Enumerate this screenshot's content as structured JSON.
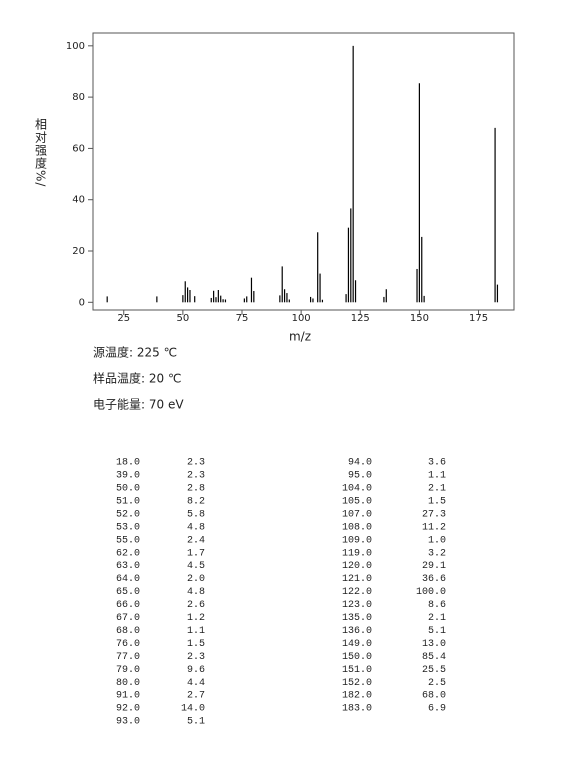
{
  "chart_data": {
    "type": "stem",
    "y_label": "相对强度%/",
    "x_label": "m/z",
    "x": [
      18,
      39,
      50,
      51,
      52,
      53,
      55,
      62,
      63,
      64,
      65,
      66,
      67,
      68,
      76,
      77,
      79,
      80,
      91,
      92,
      93,
      94,
      95,
      104,
      105,
      107,
      108,
      109,
      119,
      120,
      121,
      122,
      123,
      135,
      136,
      149,
      150,
      151,
      152,
      182,
      183
    ],
    "values": [
      2.3,
      2.3,
      2.8,
      8.2,
      5.8,
      4.8,
      2.4,
      1.7,
      4.5,
      2.0,
      4.8,
      2.6,
      1.2,
      1.1,
      1.5,
      2.3,
      9.6,
      4.4,
      2.7,
      14.0,
      5.1,
      3.6,
      1.1,
      2.1,
      1.5,
      27.3,
      11.2,
      1.0,
      3.2,
      29.1,
      36.6,
      100.0,
      8.6,
      2.1,
      5.1,
      13.0,
      85.4,
      25.5,
      2.5,
      68.0,
      6.9
    ],
    "color": "#000000",
    "xlim": [
      12,
      190
    ],
    "ylim": [
      -3,
      105
    ],
    "xticks": [
      25,
      50,
      75,
      100,
      125,
      150,
      175
    ],
    "yticks": [
      0,
      20,
      40,
      60,
      80,
      100
    ]
  },
  "conditions": [
    "源温度: 225 ℃",
    "样品温度: 20 ℃",
    "电子能量: 70 eV"
  ],
  "table": {
    "left": [
      [
        "18.0",
        "2.3"
      ],
      [
        "39.0",
        "2.3"
      ],
      [
        "50.0",
        "2.8"
      ],
      [
        "51.0",
        "8.2"
      ],
      [
        "52.0",
        "5.8"
      ],
      [
        "53.0",
        "4.8"
      ],
      [
        "55.0",
        "2.4"
      ],
      [
        "62.0",
        "1.7"
      ],
      [
        "63.0",
        "4.5"
      ],
      [
        "64.0",
        "2.0"
      ],
      [
        "65.0",
        "4.8"
      ],
      [
        "66.0",
        "2.6"
      ],
      [
        "67.0",
        "1.2"
      ],
      [
        "68.0",
        "1.1"
      ],
      [
        "76.0",
        "1.5"
      ],
      [
        "77.0",
        "2.3"
      ],
      [
        "79.0",
        "9.6"
      ],
      [
        "80.0",
        "4.4"
      ],
      [
        "91.0",
        "2.7"
      ],
      [
        "92.0",
        "14.0"
      ],
      [
        "93.0",
        "5.1"
      ]
    ],
    "right": [
      [
        "94.0",
        "3.6"
      ],
      [
        "95.0",
        "1.1"
      ],
      [
        "104.0",
        "2.1"
      ],
      [
        "105.0",
        "1.5"
      ],
      [
        "107.0",
        "27.3"
      ],
      [
        "108.0",
        "11.2"
      ],
      [
        "109.0",
        "1.0"
      ],
      [
        "119.0",
        "3.2"
      ],
      [
        "120.0",
        "29.1"
      ],
      [
        "121.0",
        "36.6"
      ],
      [
        "122.0",
        "100.0"
      ],
      [
        "123.0",
        "8.6"
      ],
      [
        "135.0",
        "2.1"
      ],
      [
        "136.0",
        "5.1"
      ],
      [
        "149.0",
        "13.0"
      ],
      [
        "150.0",
        "85.4"
      ],
      [
        "151.0",
        "25.5"
      ],
      [
        "152.0",
        "2.5"
      ],
      [
        "182.0",
        "68.0"
      ],
      [
        "183.0",
        "6.9"
      ]
    ]
  }
}
